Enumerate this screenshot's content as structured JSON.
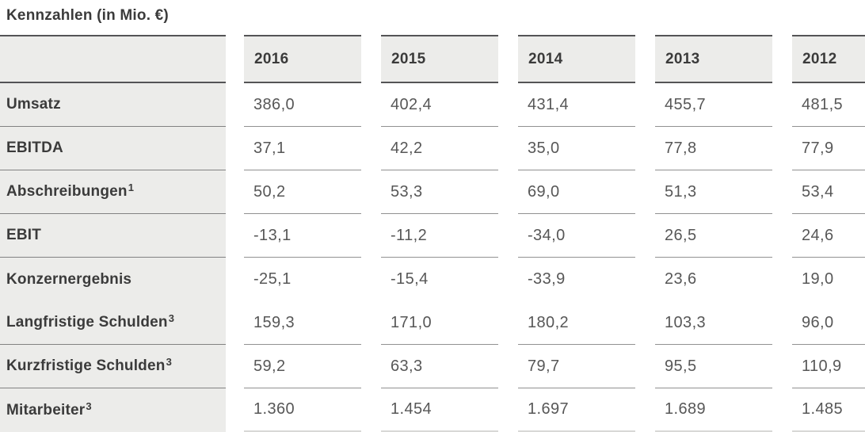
{
  "title": "Kennzahlen (in Mio. €)",
  "columns": [
    "2016",
    "2015",
    "2014",
    "2013",
    "2012"
  ],
  "rows": [
    {
      "label": "Umsatz",
      "sup": "",
      "values": [
        "386,0",
        "402,4",
        "431,4",
        "455,7",
        "481,5"
      ]
    },
    {
      "label": "EBITDA",
      "sup": "",
      "values": [
        "37,1",
        "42,2",
        "35,0",
        "77,8",
        "77,9"
      ]
    },
    {
      "label": "Abschreibungen",
      "sup": "1",
      "values": [
        "50,2",
        "53,3",
        "69,0",
        "51,3",
        "53,4"
      ]
    },
    {
      "label": "EBIT",
      "sup": "",
      "values": [
        "-13,1",
        "-11,2",
        "-34,0",
        "26,5",
        "24,6"
      ]
    },
    {
      "label": "Konzernergebnis",
      "sup": "",
      "values": [
        "-25,1",
        "-15,4",
        "-33,9",
        "23,6",
        "19,0"
      ]
    },
    {
      "label": "Langfristige Schulden",
      "sup": "3",
      "values": [
        "159,3",
        "171,0",
        "180,2",
        "103,3",
        "96,0"
      ]
    },
    {
      "label": "Kurzfristige Schulden",
      "sup": "3",
      "values": [
        "59,2",
        "63,3",
        "79,7",
        "95,5",
        "110,9"
      ]
    },
    {
      "label": "Mitarbeiter",
      "sup": "3",
      "values": [
        "1.360",
        "1.454",
        "1.697",
        "1.689",
        "1.485"
      ]
    }
  ],
  "colors": {
    "cell_gray": "#ececea",
    "dark_border": "#545456",
    "label_separator": "#828282",
    "value_underline": "#919191",
    "label_text": "#3b3b3b",
    "value_text": "#575757"
  }
}
